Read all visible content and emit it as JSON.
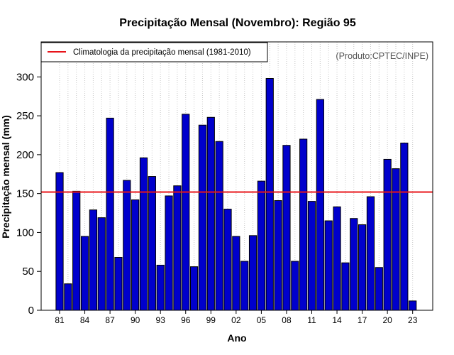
{
  "chart_data": {
    "type": "bar",
    "title": "Precipitação Mensal (Novembro): Região 95",
    "xlabel": "Ano",
    "ylabel": "Precipitação mensal (mm)",
    "credit": "(Produto:CPTEC/INPE)",
    "legend": {
      "label": "Climatologia da precipitação mensal (1981-2010)",
      "position": "top-left"
    },
    "climatology": {
      "value": 152,
      "color": "#e8141a"
    },
    "bar_color": "#0000cc",
    "grid": true,
    "ylim": [
      0,
      345
    ],
    "yticks": [
      0,
      50,
      100,
      150,
      200,
      250,
      300
    ],
    "xtick_labels": [
      "81",
      "84",
      "87",
      "90",
      "93",
      "96",
      "99",
      "02",
      "05",
      "08",
      "11",
      "14",
      "17",
      "20",
      "23"
    ],
    "categories": [
      "1981",
      "1982",
      "1983",
      "1984",
      "1985",
      "1986",
      "1987",
      "1988",
      "1989",
      "1990",
      "1991",
      "1992",
      "1993",
      "1994",
      "1995",
      "1996",
      "1997",
      "1998",
      "1999",
      "2000",
      "2001",
      "2002",
      "2003",
      "2004",
      "2005",
      "2006",
      "2007",
      "2008",
      "2009",
      "2010",
      "2011",
      "2012",
      "2013",
      "2014",
      "2015",
      "2016",
      "2017",
      "2018",
      "2019",
      "2020",
      "2021",
      "2022",
      "2023"
    ],
    "values": [
      177,
      34,
      153,
      95,
      129,
      119,
      247,
      68,
      167,
      142,
      196,
      172,
      58,
      147,
      160,
      252,
      56,
      238,
      248,
      217,
      130,
      95,
      63,
      96,
      166,
      298,
      141,
      212,
      63,
      220,
      140,
      271,
      115,
      133,
      61,
      118,
      110,
      146,
      55,
      194,
      182,
      215,
      12
    ]
  }
}
